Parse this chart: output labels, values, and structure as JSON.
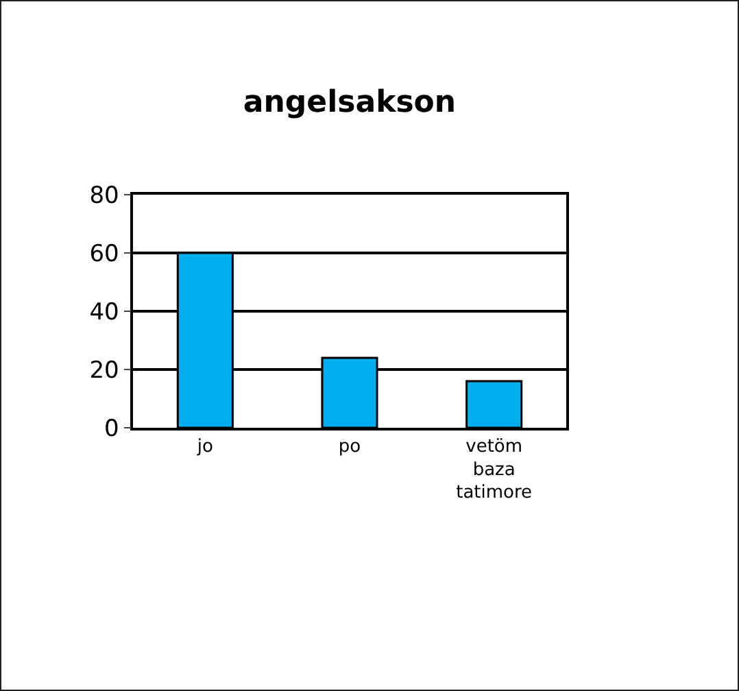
{
  "chart_data": {
    "type": "bar",
    "title": "angelsakson",
    "categories": [
      "jo",
      "po",
      "vetöm baza tatimore"
    ],
    "values": [
      60,
      24,
      16
    ],
    "color": "#00aeef",
    "ylim": [
      0,
      80
    ],
    "yticks": [
      0,
      20,
      40,
      60,
      80
    ],
    "grid": "y",
    "legend": false
  }
}
